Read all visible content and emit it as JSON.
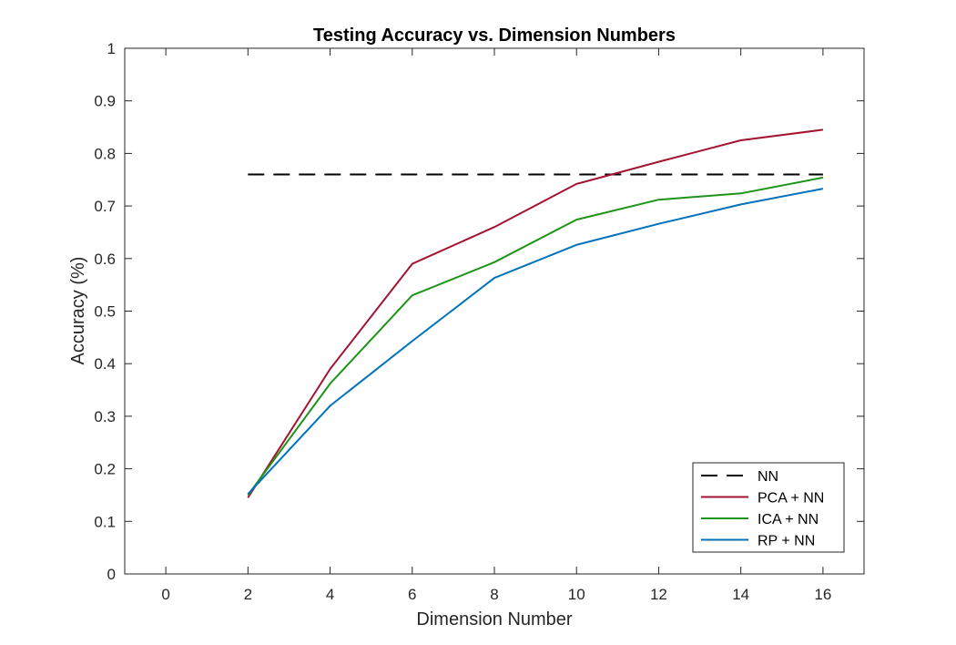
{
  "chart_data": {
    "type": "line",
    "title": "Testing Accuracy vs. Dimension Numbers",
    "xlabel": "Dimension Number",
    "ylabel": "Accuracy (%)",
    "xlim": [
      -1,
      17
    ],
    "ylim": [
      0,
      1
    ],
    "xticks": [
      0,
      2,
      4,
      6,
      8,
      10,
      12,
      14,
      16
    ],
    "xtick_labels": [
      "0",
      "2",
      "4",
      "6",
      "8",
      "10",
      "12",
      "14",
      "16"
    ],
    "yticks": [
      0,
      0.1,
      0.2,
      0.3,
      0.4,
      0.5,
      0.6,
      0.7,
      0.8,
      0.9,
      1
    ],
    "ytick_labels": [
      "0",
      "0.1",
      "0.2",
      "0.3",
      "0.4",
      "0.5",
      "0.6",
      "0.7",
      "0.8",
      "0.9",
      "1"
    ],
    "grid": false,
    "legend_position": "bottom-right",
    "x": [
      2,
      4,
      6,
      8,
      10,
      12,
      14,
      16
    ],
    "series": [
      {
        "name": "NN",
        "color": "#000000",
        "dash": true,
        "values": [
          0.76,
          0.76,
          0.76,
          0.76,
          0.76,
          0.76,
          0.76,
          0.76
        ]
      },
      {
        "name": "PCA + NN",
        "color": "#a2142f",
        "dash": false,
        "values": [
          0.145,
          0.39,
          0.59,
          0.66,
          0.742,
          0.784,
          0.825,
          0.845
        ]
      },
      {
        "name": "ICA + NN",
        "color": "#1e9419",
        "dash": false,
        "values": [
          0.15,
          0.362,
          0.53,
          0.593,
          0.674,
          0.712,
          0.724,
          0.754
        ]
      },
      {
        "name": "RP + NN",
        "color": "#0072bd",
        "dash": false,
        "values": [
          0.152,
          0.32,
          0.443,
          0.563,
          0.626,
          0.666,
          0.703,
          0.733
        ]
      }
    ]
  }
}
